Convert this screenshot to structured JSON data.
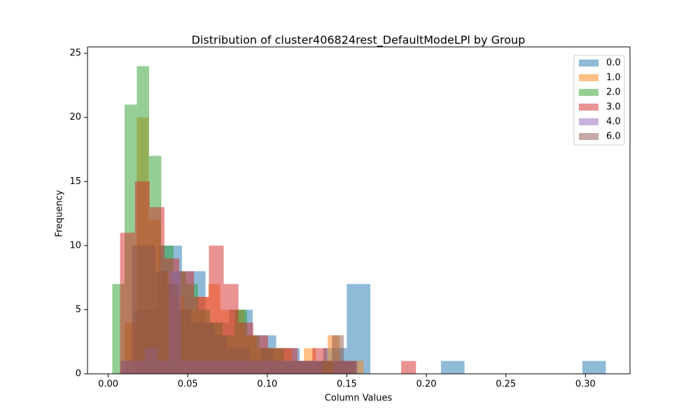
{
  "chart_data": {
    "type": "histogram",
    "title": "Distribution of cluster406824rest_DefaultModeLPl by Group",
    "x_label": "Column Values",
    "y_label": "Frequency",
    "xlim": [
      -0.013,
      0.328
    ],
    "ylim": [
      0,
      25.5
    ],
    "xticks": [
      {
        "value": 0,
        "label": "0.00"
      },
      0.05,
      {
        "value": 0.1,
        "label": "0.10"
      },
      0.15,
      {
        "value": 0.2,
        "label": "0.20"
      },
      0.25,
      {
        "value": 0.3,
        "label": "0.30"
      }
    ],
    "yticks": [
      0,
      5,
      10,
      15,
      20,
      25
    ],
    "alpha": 0.5,
    "legend": "upper-right",
    "series": [
      {
        "name": "0.0",
        "color": "#1f77b4",
        "bins": [
          0.0168,
          0.0316,
          0.0464,
          0.0612,
          0.076,
          0.0908,
          0.1056,
          0.1204,
          0.1352,
          0.15,
          0.1648,
          0.1796,
          0.1944,
          0.2092,
          0.224,
          0.2388,
          0.2536,
          0.2684,
          0.2832,
          0.298,
          0.3128
        ],
        "values": [
          5,
          10,
          8,
          4,
          5,
          3,
          2,
          1,
          2,
          7,
          0,
          0,
          0,
          1,
          0,
          0,
          0,
          0,
          0,
          1
        ]
      },
      {
        "name": "1.0",
        "color": "#ff7f0e",
        "bins": [
          0.0105,
          0.018,
          0.0255,
          0.033,
          0.0405,
          0.048,
          0.0555,
          0.063,
          0.0705,
          0.078,
          0.0855,
          0.093,
          0.1005,
          0.108,
          0.1155,
          0.123,
          0.1305,
          0.138,
          0.1455,
          0.153,
          0.1605
        ],
        "values": [
          4,
          20,
          12,
          8,
          6,
          5,
          6,
          7,
          5,
          5,
          3,
          2,
          2,
          2,
          1,
          2,
          1,
          3,
          1,
          1
        ]
      },
      {
        "name": "2.0",
        "color": "#2ca02c",
        "bins": [
          0.0026,
          0.0103,
          0.018,
          0.0257,
          0.0334,
          0.0411,
          0.0488,
          0.0565,
          0.0642,
          0.0719,
          0.0796,
          0.0873,
          0.095,
          0.1027,
          0.1104,
          0.1181,
          0.1258,
          0.1335,
          0.1412,
          0.1489,
          0.1566
        ],
        "values": [
          7,
          21,
          24,
          17,
          10,
          8,
          7,
          5,
          4,
          3,
          5,
          3,
          2,
          2,
          1,
          1,
          1,
          1,
          1,
          1
        ]
      },
      {
        "name": "3.0",
        "color": "#d62728",
        "bins": [
          0.0075,
          0.0168,
          0.0261,
          0.0354,
          0.0447,
          0.054,
          0.0633,
          0.0726,
          0.0819,
          0.0912,
          0.1005,
          0.1098,
          0.1191,
          0.1284,
          0.1377,
          0.147,
          0.1563,
          0.1656,
          0.1749,
          0.1842,
          0.1935
        ],
        "values": [
          11,
          15,
          13,
          9,
          8,
          6,
          10,
          7,
          4,
          3,
          2,
          2,
          1,
          2,
          1,
          1,
          0,
          0,
          0,
          1
        ]
      },
      {
        "name": "4.0",
        "color": "#9467bd",
        "bins": [
          0.0085,
          0.0159,
          0.0233,
          0.0307,
          0.0381,
          0.0455,
          0.0529,
          0.0603,
          0.0677,
          0.0751,
          0.0825,
          0.0899,
          0.0973,
          0.1047,
          0.1121,
          0.1195,
          0.1269,
          0.1343,
          0.1417,
          0.1491,
          0.1565
        ],
        "values": [
          1,
          1,
          2,
          1,
          8,
          1,
          1,
          1,
          1,
          1,
          1,
          1,
          1,
          1,
          1,
          1,
          1,
          0,
          1,
          1
        ]
      },
      {
        "name": "6.0",
        "color": "#8c564b",
        "bins": [
          0.0075,
          0.0149,
          0.0223,
          0.0297,
          0.0371,
          0.0445,
          0.0519,
          0.0593,
          0.0667,
          0.0741,
          0.0815,
          0.0889,
          0.0963,
          0.1037,
          0.1111,
          0.1185,
          0.1259,
          0.1333,
          0.1407,
          0.1481,
          0.1555
        ],
        "values": [
          1,
          10,
          10,
          8,
          7,
          5,
          4,
          4,
          3,
          2,
          2,
          1,
          2,
          1,
          1,
          1,
          1,
          1,
          3,
          1
        ]
      }
    ]
  }
}
